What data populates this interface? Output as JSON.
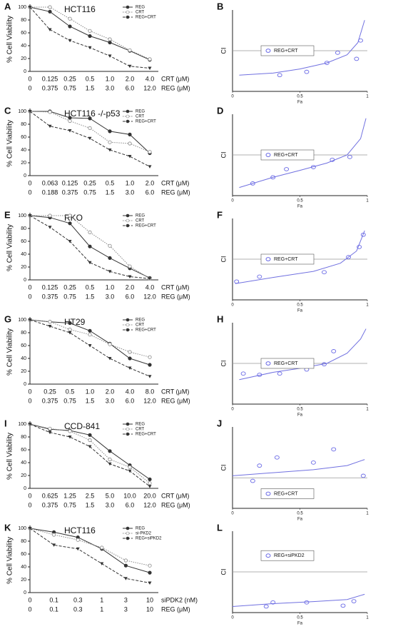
{
  "chart_data": [
    {
      "type": "line",
      "panel": "A",
      "title": "HCT116",
      "ylabel": "% Cell Viability",
      "ylim": [
        0,
        100
      ],
      "yticks": [
        0,
        20,
        40,
        60,
        80,
        100
      ],
      "categories": [
        "0",
        "0.125",
        "0.25",
        "0.5",
        "1.0",
        "2.0",
        "4.0"
      ],
      "categories_2": [
        "0",
        "0.375",
        "0.75",
        "1.5",
        "3.0",
        "6.0",
        "12.0"
      ],
      "x_row_names": [
        "CRT (μM)",
        "REG (μM)"
      ],
      "series": [
        {
          "name": "REG",
          "color": "#333333",
          "dash": "solid",
          "marker": "filled-circle",
          "values": [
            100,
            93,
            70,
            55,
            45,
            32,
            18
          ]
        },
        {
          "name": "CRT",
          "color": "#888888",
          "dash": "dot",
          "marker": "open-circle",
          "values": [
            100,
            100,
            82,
            63,
            50,
            33,
            19
          ]
        },
        {
          "name": "REG+CRT",
          "color": "#333333",
          "dash": "dash",
          "marker": "filled-triangle",
          "values": [
            100,
            65,
            48,
            37,
            24,
            8,
            5
          ]
        }
      ]
    },
    {
      "type": "scatter",
      "panel": "B",
      "xlabel": "Fa",
      "ylabel": "CI",
      "xlim": [
        0,
        1
      ],
      "xticks": [
        0,
        0.5,
        1
      ],
      "ylim": [
        0,
        2
      ],
      "ref_line": 1,
      "legend": "center left",
      "curve_color": "#7070e0",
      "series": [
        {
          "name": "REG+CRT",
          "color": "#6a6ae6",
          "x": [
            0.35,
            0.55,
            0.7,
            0.78,
            0.92,
            0.95
          ],
          "y": [
            0.4,
            0.48,
            0.7,
            0.95,
            0.8,
            1.25
          ]
        }
      ],
      "curve": {
        "x": [
          0.05,
          0.3,
          0.5,
          0.7,
          0.85,
          0.93,
          0.98
        ],
        "y": [
          0.4,
          0.45,
          0.55,
          0.7,
          0.9,
          1.2,
          1.75
        ]
      }
    },
    {
      "type": "line",
      "panel": "C",
      "title": "HCT116 -/-p53",
      "ylabel": "% Cell Viability",
      "ylim": [
        0,
        100
      ],
      "yticks": [
        0,
        20,
        40,
        60,
        80,
        100
      ],
      "categories": [
        "0",
        "0.063",
        "0.125",
        "0.25",
        "0.5",
        "1.0",
        "2.0"
      ],
      "categories_2": [
        "0",
        "0.188",
        "0.375",
        "0.75",
        "1.5",
        "3.0",
        "6.0"
      ],
      "x_row_names": [
        "CRT (μM)",
        "REG (μM)"
      ],
      "series": [
        {
          "name": "REG",
          "color": "#333333",
          "dash": "solid",
          "marker": "filled-circle",
          "values": [
            100,
            100,
            90,
            89,
            69,
            64,
            35
          ]
        },
        {
          "name": "CRT",
          "color": "#888888",
          "dash": "dot",
          "marker": "open-circle",
          "values": [
            100,
            99,
            85,
            74,
            52,
            50,
            37
          ]
        },
        {
          "name": "REG+CRT",
          "color": "#333333",
          "dash": "dash",
          "marker": "filled-triangle",
          "values": [
            100,
            77,
            70,
            58,
            40,
            30,
            14
          ]
        }
      ]
    },
    {
      "type": "scatter",
      "panel": "D",
      "xlabel": "Fa",
      "ylabel": "CI",
      "xlim": [
        0,
        1
      ],
      "xticks": [
        0,
        0.5,
        1
      ],
      "ylim": [
        0,
        2
      ],
      "ref_line": 1,
      "legend": "center left",
      "curve_color": "#7070e0",
      "series": [
        {
          "name": "REG+CRT",
          "color": "#6a6ae6",
          "x": [
            0.15,
            0.3,
            0.4,
            0.6,
            0.74,
            0.87
          ],
          "y": [
            0.3,
            0.45,
            0.65,
            0.7,
            0.88,
            0.95
          ]
        }
      ],
      "curve": {
        "x": [
          0.05,
          0.3,
          0.5,
          0.7,
          0.85,
          0.95,
          0.99
        ],
        "y": [
          0.2,
          0.45,
          0.62,
          0.8,
          1.0,
          1.4,
          1.9
        ]
      }
    },
    {
      "type": "line",
      "panel": "E",
      "title": "RKO",
      "ylabel": "% Cell Viability",
      "ylim": [
        0,
        100
      ],
      "yticks": [
        0,
        20,
        40,
        60,
        80,
        100
      ],
      "categories": [
        "0",
        "0.125",
        "0.25",
        "0.5",
        "1.0",
        "2.0",
        "4.0"
      ],
      "categories_2": [
        "0",
        "0.375",
        "0.75",
        "1.5",
        "3.0",
        "6.0",
        "12.0"
      ],
      "x_row_names": [
        "CRT (μM)",
        "REG (μM)"
      ],
      "series": [
        {
          "name": "REG",
          "color": "#333333",
          "dash": "solid",
          "marker": "filled-circle",
          "values": [
            100,
            97,
            88,
            52,
            34,
            18,
            3
          ]
        },
        {
          "name": "CRT",
          "color": "#888888",
          "dash": "dot",
          "marker": "open-circle",
          "values": [
            100,
            100,
            100,
            74,
            53,
            21,
            2
          ]
        },
        {
          "name": "REG+CRT",
          "color": "#333333",
          "dash": "dash",
          "marker": "filled-triangle",
          "values": [
            100,
            82,
            60,
            27,
            13,
            5,
            2
          ]
        }
      ]
    },
    {
      "type": "scatter",
      "panel": "F",
      "xlabel": "Fa",
      "ylabel": "CI",
      "xlim": [
        0,
        1
      ],
      "xticks": [
        0,
        0.5,
        1
      ],
      "ylim": [
        0,
        2
      ],
      "ref_line": 1,
      "legend": "center left",
      "curve_color": "#7070e0",
      "series": [
        {
          "name": "REG+CRT",
          "color": "#6a6ae6",
          "x": [
            0.03,
            0.2,
            0.68,
            0.86,
            0.94,
            0.97
          ],
          "y": [
            0.45,
            0.57,
            0.68,
            1.05,
            1.3,
            1.6
          ]
        }
      ],
      "curve": {
        "x": [
          0.02,
          0.3,
          0.6,
          0.8,
          0.92,
          0.98
        ],
        "y": [
          0.4,
          0.55,
          0.7,
          0.9,
          1.2,
          1.7
        ]
      }
    },
    {
      "type": "line",
      "panel": "G",
      "title": "HT29",
      "ylabel": "% Cell Viability",
      "ylim": [
        0,
        100
      ],
      "yticks": [
        0,
        20,
        40,
        60,
        80,
        100
      ],
      "categories": [
        "0",
        "0.25",
        "0.5",
        "1.0",
        "2.0",
        "4.0",
        "8.0"
      ],
      "categories_2": [
        "0",
        "0.375",
        "0.75",
        "1.5",
        "3.0",
        "6.0",
        "12.0"
      ],
      "x_row_names": [
        "CRT (μM)",
        "REG (μM)"
      ],
      "series": [
        {
          "name": "REG",
          "color": "#333333",
          "dash": "solid",
          "marker": "filled-circle",
          "values": [
            100,
            97,
            95,
            83,
            63,
            40,
            30
          ]
        },
        {
          "name": "CRT",
          "color": "#888888",
          "dash": "dot",
          "marker": "open-circle",
          "values": [
            100,
            97,
            85,
            77,
            62,
            50,
            42
          ]
        },
        {
          "name": "REG+CRT",
          "color": "#333333",
          "dash": "dash",
          "marker": "filled-triangle",
          "values": [
            100,
            90,
            80,
            60,
            40,
            25,
            12
          ]
        }
      ]
    },
    {
      "type": "scatter",
      "panel": "H",
      "xlabel": "Fa",
      "ylabel": "CI",
      "xlim": [
        0,
        1
      ],
      "xticks": [
        0,
        0.5,
        1
      ],
      "ylim": [
        0,
        2
      ],
      "ref_line": 1,
      "legend": "center left",
      "curve_color": "#7070e0",
      "series": [
        {
          "name": "REG+CRT",
          "color": "#6a6ae6",
          "x": [
            0.08,
            0.2,
            0.35,
            0.55,
            0.68,
            0.75
          ],
          "y": [
            0.75,
            0.72,
            0.75,
            0.85,
            0.98,
            1.3
          ]
        }
      ],
      "curve": {
        "x": [
          0.05,
          0.3,
          0.5,
          0.7,
          0.85,
          0.95,
          0.99
        ],
        "y": [
          0.6,
          0.78,
          0.88,
          1.0,
          1.25,
          1.6,
          1.85
        ]
      }
    },
    {
      "type": "line",
      "panel": "I",
      "title": "CCD-841",
      "ylabel": "% Cell Viability",
      "ylim": [
        0,
        100
      ],
      "yticks": [
        0,
        20,
        40,
        60,
        80,
        100
      ],
      "categories": [
        "0",
        "0.625",
        "1.25",
        "2.5",
        "5.0",
        "10.0",
        "20.0"
      ],
      "categories_2": [
        "0",
        "0.375",
        "0.75",
        "1.5",
        "3.0",
        "6.0",
        "12.0"
      ],
      "x_row_names": [
        "CRT (μM)",
        "REG (μM)"
      ],
      "series": [
        {
          "name": "REG",
          "color": "#333333",
          "dash": "solid",
          "marker": "filled-circle",
          "values": [
            100,
            92,
            90,
            83,
            58,
            36,
            14
          ]
        },
        {
          "name": "CRT",
          "color": "#888888",
          "dash": "dot",
          "marker": "open-circle",
          "values": [
            100,
            93,
            89,
            75,
            45,
            33,
            8
          ]
        },
        {
          "name": "REG+CRT",
          "color": "#333333",
          "dash": "dash",
          "marker": "filled-triangle",
          "values": [
            100,
            87,
            80,
            65,
            38,
            27,
            3
          ]
        }
      ]
    },
    {
      "type": "scatter",
      "panel": "J",
      "xlabel": "Fa",
      "ylabel": "CI",
      "xlim": [
        0,
        1
      ],
      "xticks": [
        0,
        0.5,
        1
      ],
      "ylim": [
        0.7,
        1.5
      ],
      "ref_line": 1,
      "legend": "lower left",
      "curve_color": "#7070e0",
      "series": [
        {
          "name": "REG+CRT",
          "color": "#6a6ae6",
          "x": [
            0.15,
            0.2,
            0.33,
            0.6,
            0.75,
            0.97
          ],
          "y": [
            0.97,
            1.12,
            1.2,
            1.15,
            1.28,
            1.02
          ]
        }
      ],
      "curve": {
        "x": [
          0,
          0.3,
          0.6,
          0.85,
          0.98
        ],
        "y": [
          1.02,
          1.05,
          1.08,
          1.12,
          1.18
        ]
      }
    },
    {
      "type": "line",
      "panel": "K",
      "title": "HCT116",
      "ylabel": "% Cell Viability",
      "ylim": [
        0,
        100
      ],
      "yticks": [
        0,
        20,
        40,
        60,
        80,
        100
      ],
      "categories": [
        "0",
        "0.1",
        "0.3",
        "1",
        "3",
        "10"
      ],
      "categories_2": [
        "0",
        "0.1",
        "0.3",
        "1",
        "3",
        "10"
      ],
      "x_row_names": [
        "siPDK2 (nM)",
        "REG (μM)"
      ],
      "series": [
        {
          "name": "REG",
          "color": "#333333",
          "dash": "solid",
          "marker": "filled-circle",
          "values": [
            100,
            94,
            86,
            68,
            42,
            31
          ]
        },
        {
          "name": "si-PKD2",
          "color": "#888888",
          "dash": "dot",
          "marker": "open-circle",
          "values": [
            100,
            90,
            82,
            70,
            50,
            42
          ]
        },
        {
          "name": "REG+siPKD2",
          "color": "#333333",
          "dash": "dash",
          "marker": "filled-triangle",
          "values": [
            100,
            74,
            68,
            45,
            22,
            15
          ]
        }
      ]
    },
    {
      "type": "scatter",
      "panel": "L",
      "xlabel": "Fa",
      "ylabel": "CI",
      "xlim": [
        0,
        1
      ],
      "xticks": [
        0,
        0.5,
        1
      ],
      "ylim": [
        0,
        2
      ],
      "ref_line": 1,
      "legend": "upper left",
      "curve_color": "#7070e0",
      "series": [
        {
          "name": "REG+siPKD2",
          "color": "#6a6ae6",
          "x": [
            0.25,
            0.3,
            0.55,
            0.82,
            0.9
          ],
          "y": [
            0.15,
            0.25,
            0.25,
            0.17,
            0.28
          ]
        }
      ],
      "curve": {
        "x": [
          0,
          0.3,
          0.6,
          0.85,
          0.98
        ],
        "y": [
          0.15,
          0.22,
          0.27,
          0.32,
          0.45
        ]
      }
    }
  ]
}
